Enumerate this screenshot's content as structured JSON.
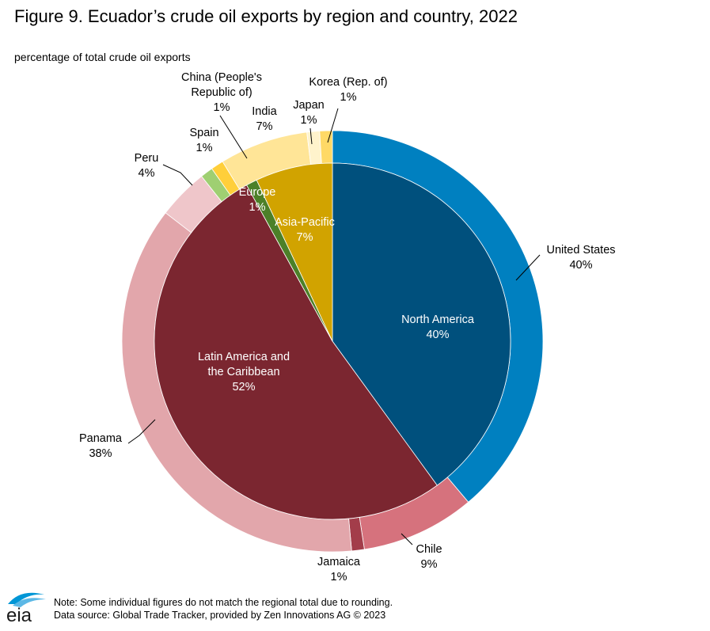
{
  "title": "Figure 9. Ecuador’s crude oil exports by region and country, 2022",
  "subtitle": "percentage of total crude oil exports",
  "note": "Note: Some individual figures do not match the regional total  due to rounding.",
  "source": "Data source:  Global Trade Tracker, provided by Zen Innovations AG © 2023",
  "logo_text": "eia",
  "chart_data": {
    "type": "pie",
    "inner": [
      {
        "name": "North America",
        "value": 40,
        "label": "40%",
        "color": "#00507d"
      },
      {
        "name": "Latin America and the Caribbean",
        "value": 52,
        "label": "52%",
        "color": "#7b2630"
      },
      {
        "name": "Europe",
        "value": 1,
        "label": "1%",
        "color": "#4c8028"
      },
      {
        "name": "Asia-Pacific",
        "value": 7,
        "label": "7%",
        "color": "#d1a300"
      }
    ],
    "outer": [
      {
        "name": "United States",
        "value": 40,
        "label": "40%",
        "color": "#0080c0"
      },
      {
        "name": "Chile",
        "value": 9,
        "label": "9%",
        "color": "#d6727d"
      },
      {
        "name": "Jamaica",
        "value": 1,
        "label": "1%",
        "color": "#a33d4a"
      },
      {
        "name": "Panama",
        "value": 38,
        "label": "38%",
        "color": "#e2a6ab"
      },
      {
        "name": "Peru",
        "value": 4,
        "label": "4%",
        "color": "#efc6ca"
      },
      {
        "name": "Spain",
        "value": 1,
        "label": "1%",
        "color": "#9fcf72"
      },
      {
        "name": "China (People's Republic of)",
        "value": 1,
        "label": "1%",
        "color": "#ffcf3a"
      },
      {
        "name": "India",
        "value": 7,
        "label": "7%",
        "color": "#ffe597"
      },
      {
        "name": "Japan",
        "value": 1,
        "label": "1%",
        "color": "#fff3cc"
      },
      {
        "name": "Korea (Rep. of)",
        "value": 1,
        "label": "1%",
        "color": "#ffd966"
      }
    ]
  }
}
